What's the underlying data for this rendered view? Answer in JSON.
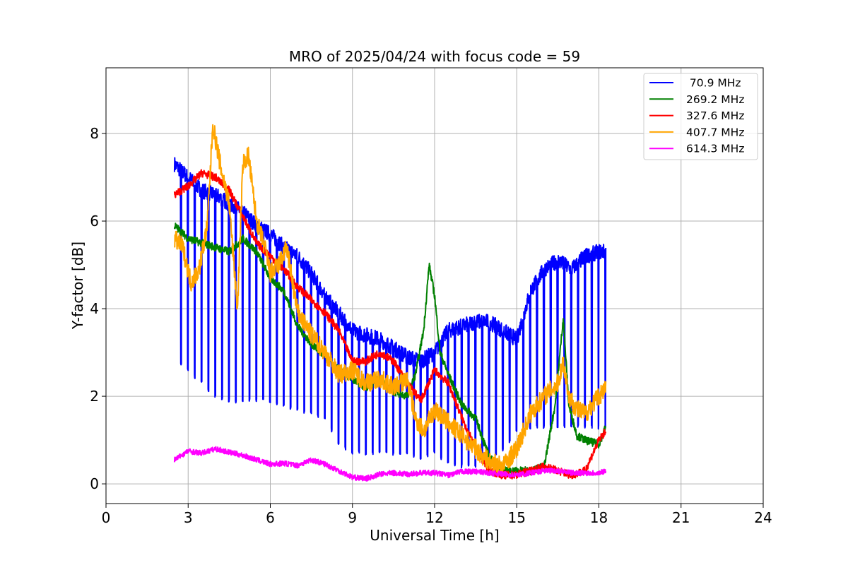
{
  "chart_data": {
    "type": "line",
    "title": "MRO of 2025/04/24 with focus code = 59",
    "xlabel": "Universal Time [h]",
    "ylabel": "Y-factor [dB]",
    "xlim": [
      0,
      24
    ],
    "ylim": [
      -0.45,
      9.5
    ],
    "xticks": [
      0,
      3,
      6,
      9,
      12,
      15,
      18,
      21,
      24
    ],
    "yticks": [
      0,
      2,
      4,
      6,
      8
    ],
    "grid": true,
    "legend_position": "top-right",
    "series": [
      {
        "name": " 70.9 MHz",
        "color": "#0000ff",
        "x": [
          2.5,
          3.0,
          3.5,
          4.0,
          4.5,
          5.0,
          5.5,
          6.0,
          6.5,
          7.0,
          7.5,
          8.0,
          8.5,
          9.0,
          9.5,
          10.0,
          10.5,
          11.0,
          11.5,
          12.0,
          12.5,
          13.0,
          13.5,
          14.0,
          14.5,
          15.0,
          15.5,
          16.0,
          16.5,
          17.0,
          17.5,
          18.0,
          18.25
        ],
        "y": [
          7.3,
          7.0,
          6.7,
          6.6,
          6.4,
          6.2,
          5.9,
          5.7,
          5.4,
          5.2,
          4.8,
          4.3,
          3.9,
          3.5,
          3.4,
          3.3,
          3.1,
          2.9,
          2.8,
          3.0,
          3.5,
          3.6,
          3.7,
          3.7,
          3.5,
          3.3,
          4.4,
          4.9,
          5.1,
          4.9,
          5.2,
          5.3,
          5.3
        ],
        "dips": [
          2.8,
          2.6,
          2.3,
          2.0,
          1.9,
          1.9,
          1.9,
          1.9,
          1.8,
          1.7,
          1.6,
          1.5,
          0.9,
          0.7,
          0.7,
          0.7,
          0.7,
          0.7,
          0.6,
          0.7,
          0.5,
          0.4,
          0.4,
          0.6,
          0.8,
          1.2,
          1.3,
          1.3,
          1.3,
          1.3,
          1.3,
          1.3,
          1.3
        ],
        "dip_period_h": 0.25
      },
      {
        "name": "269.2 MHz",
        "color": "#008000",
        "x": [
          2.5,
          3.0,
          3.5,
          4.0,
          4.5,
          5.0,
          5.5,
          6.0,
          6.5,
          7.0,
          7.5,
          8.0,
          8.5,
          9.0,
          9.5,
          10.0,
          10.5,
          11.0,
          11.3,
          11.6,
          11.8,
          12.0,
          12.2,
          12.5,
          13.0,
          13.5,
          14.0,
          14.5,
          15.0,
          15.5,
          16.0,
          16.4,
          16.7,
          16.9,
          17.2,
          17.5,
          18.0,
          18.25
        ],
        "y": [
          5.9,
          5.6,
          5.5,
          5.4,
          5.3,
          5.6,
          5.3,
          4.7,
          4.4,
          3.6,
          3.2,
          2.9,
          2.6,
          2.4,
          2.2,
          2.4,
          2.1,
          2.0,
          2.5,
          3.5,
          5.0,
          4.3,
          3.0,
          2.5,
          1.8,
          1.5,
          0.6,
          0.3,
          0.3,
          0.3,
          0.4,
          1.8,
          3.8,
          1.8,
          1.1,
          1.0,
          0.9,
          1.3
        ]
      },
      {
        "name": "327.6 MHz",
        "color": "#ff0000",
        "x": [
          2.5,
          3.0,
          3.5,
          4.0,
          4.5,
          5.0,
          5.5,
          6.0,
          6.5,
          7.0,
          7.5,
          8.0,
          8.5,
          9.0,
          9.5,
          10.0,
          10.5,
          11.0,
          11.5,
          12.0,
          12.5,
          13.0,
          13.5,
          14.0,
          14.5,
          15.0,
          15.5,
          16.0,
          16.5,
          17.0,
          17.5,
          18.0,
          18.25
        ],
        "y": [
          6.6,
          6.8,
          7.1,
          7.0,
          6.7,
          6.1,
          5.5,
          5.2,
          4.9,
          4.5,
          4.2,
          3.9,
          3.5,
          2.8,
          2.8,
          3.0,
          2.8,
          2.3,
          1.9,
          2.6,
          2.3,
          1.5,
          0.8,
          0.3,
          0.2,
          0.2,
          0.3,
          0.4,
          0.3,
          0.2,
          0.3,
          1.0,
          1.2
        ]
      },
      {
        "name": "407.7 MHz",
        "color": "#ffa500",
        "x": [
          2.5,
          2.8,
          3.1,
          3.4,
          3.7,
          3.9,
          4.2,
          4.5,
          4.8,
          5.0,
          5.2,
          5.5,
          5.8,
          6.0,
          6.3,
          6.6,
          7.0,
          7.5,
          8.0,
          8.5,
          9.0,
          9.5,
          10.0,
          10.5,
          11.0,
          11.3,
          11.6,
          12.0,
          12.5,
          13.0,
          13.5,
          14.0,
          14.5,
          15.0,
          15.5,
          16.0,
          16.5,
          16.7,
          16.9,
          17.2,
          17.5,
          18.0,
          18.25
        ],
        "y": [
          5.6,
          5.4,
          4.6,
          4.9,
          5.9,
          8.2,
          7.2,
          6.4,
          4.0,
          7.3,
          7.5,
          6.0,
          5.4,
          4.8,
          5.0,
          5.4,
          3.9,
          3.4,
          3.0,
          2.5,
          2.6,
          2.3,
          2.4,
          2.2,
          2.4,
          1.5,
          1.2,
          1.7,
          1.4,
          1.1,
          0.8,
          0.5,
          0.4,
          0.8,
          1.6,
          2.0,
          2.3,
          2.8,
          2.0,
          1.7,
          1.6,
          2.0,
          2.2
        ]
      },
      {
        "name": "614.3 MHz",
        "color": "#ff00ff",
        "x": [
          2.5,
          3.0,
          3.5,
          4.0,
          4.5,
          5.0,
          5.5,
          6.0,
          6.5,
          7.0,
          7.5,
          8.0,
          8.5,
          9.0,
          9.5,
          10.0,
          10.5,
          11.0,
          11.5,
          12.0,
          12.5,
          13.0,
          13.5,
          14.0,
          14.5,
          15.0,
          15.5,
          16.0,
          16.5,
          17.0,
          17.5,
          18.0,
          18.25
        ],
        "y": [
          0.55,
          0.75,
          0.7,
          0.8,
          0.72,
          0.65,
          0.55,
          0.45,
          0.47,
          0.42,
          0.55,
          0.45,
          0.3,
          0.15,
          0.12,
          0.22,
          0.25,
          0.22,
          0.25,
          0.25,
          0.2,
          0.28,
          0.28,
          0.25,
          0.22,
          0.2,
          0.25,
          0.3,
          0.3,
          0.25,
          0.25,
          0.25,
          0.3
        ]
      }
    ]
  }
}
